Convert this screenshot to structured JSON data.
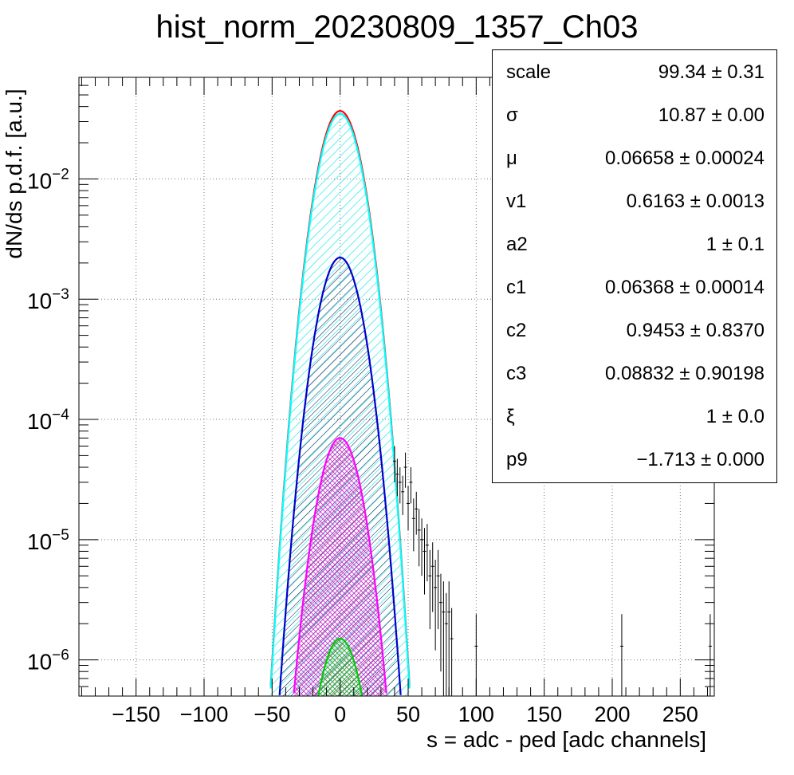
{
  "chart_data": {
    "type": "histogram",
    "title": "hist_norm_20230809_1357_Ch03",
    "xlabel": "s = adc - ped [adc channels]",
    "ylabel": "dN/ds p.d.f. [a.u.]",
    "xlim": [
      -192,
      275
    ],
    "ylim": [
      5e-07,
      0.07
    ],
    "yscale": "log",
    "grid": true,
    "x_ticks": [
      -150,
      -100,
      -50,
      0,
      50,
      100,
      150,
      200,
      250
    ],
    "y_ticks": [
      {
        "value": 1e-06,
        "base": "10",
        "exp": "−6"
      },
      {
        "value": 1e-05,
        "base": "10",
        "exp": "−5"
      },
      {
        "value": 0.0001,
        "base": "10",
        "exp": "−4"
      },
      {
        "value": 0.001,
        "base": "10",
        "exp": "−3"
      },
      {
        "value": 0.01,
        "base": "10",
        "exp": "−2"
      }
    ],
    "curves": [
      {
        "color": "#ff0000",
        "peak": 0.0368,
        "mu": 0,
        "sigma": 10.87,
        "hatch": "none"
      },
      {
        "color": "#00ffff",
        "peak": 0.0348,
        "mu": 0,
        "sigma": 10.87,
        "hatch": "cyan"
      },
      {
        "color": "#0000cc",
        "peak": 0.00222,
        "mu": 0,
        "sigma": 10.87,
        "hatch": "dark"
      },
      {
        "color": "#ff00ff",
        "peak": 7e-05,
        "mu": 0,
        "sigma": 10.87,
        "hatch": "magenta"
      },
      {
        "color": "#00cc00",
        "peak": 1.5e-06,
        "mu": 0,
        "sigma": 10.87,
        "hatch": "green"
      }
    ],
    "tail_points": [
      {
        "x": 40,
        "y": 4.5e-05,
        "err": 1.5e-05
      },
      {
        "x": 42,
        "y": 3.5e-05,
        "err": 1.2e-05
      },
      {
        "x": 44,
        "y": 3e-05,
        "err": 1e-05
      },
      {
        "x": 46,
        "y": 2.5e-05,
        "err": 9e-06
      },
      {
        "x": 48,
        "y": 4e-05,
        "err": 1.3e-05
      },
      {
        "x": 50,
        "y": 2e-05,
        "err": 8e-06
      },
      {
        "x": 52,
        "y": 3e-05,
        "err": 1e-05
      },
      {
        "x": 54,
        "y": 1.5e-05,
        "err": 7e-06
      },
      {
        "x": 56,
        "y": 1.8e-05,
        "err": 7e-06
      },
      {
        "x": 58,
        "y": 1.2e-05,
        "err": 6e-06
      },
      {
        "x": 60,
        "y": 1e-05,
        "err": 5e-06
      },
      {
        "x": 62,
        "y": 8e-06,
        "err": 4.5e-06
      },
      {
        "x": 64,
        "y": 9e-06,
        "err": 4.5e-06
      },
      {
        "x": 66,
        "y": 5e-06,
        "err": 3.2e-06
      },
      {
        "x": 68,
        "y": 6e-06,
        "err": 3.5e-06
      },
      {
        "x": 70,
        "y": 4e-06,
        "err": 2.8e-06
      },
      {
        "x": 72,
        "y": 5e-06,
        "err": 3.2e-06
      },
      {
        "x": 74,
        "y": 3e-06,
        "err": 2.2e-06
      },
      {
        "x": 76,
        "y": 2.5e-06,
        "err": 2e-06
      },
      {
        "x": 78,
        "y": 2e-06,
        "err": 1.6e-06
      },
      {
        "x": 80,
        "y": 2.5e-06,
        "err": 2e-06
      },
      {
        "x": 82,
        "y": 1.5e-06,
        "err": 1.2e-06
      },
      {
        "x": 100,
        "y": 1.3e-06,
        "err": 1.1e-06
      },
      {
        "x": 207,
        "y": 1.3e-06,
        "err": 1.1e-06
      },
      {
        "x": 272,
        "y": 1.3e-06,
        "err": 1.1e-06
      }
    ]
  },
  "stats": [
    {
      "key": "scale",
      "value": "99.34 ± 0.31"
    },
    {
      "key": "σ",
      "value": "10.87 ± 0.00"
    },
    {
      "key": "μ",
      "value": "0.06658 ± 0.00024"
    },
    {
      "key": "v1",
      "value": "0.6163 ± 0.0013"
    },
    {
      "key": "a2",
      "value": "1 ± 0.1"
    },
    {
      "key": "c1",
      "value": "0.06368 ± 0.00014"
    },
    {
      "key": "c2",
      "value": "0.9453 ± 0.8370"
    },
    {
      "key": "c3",
      "value": "0.08832 ± 0.90198"
    },
    {
      "key": "ξ",
      "value": "1 ± 0.0"
    },
    {
      "key": "p9",
      "value": "−1.713 ± 0.000"
    }
  ]
}
